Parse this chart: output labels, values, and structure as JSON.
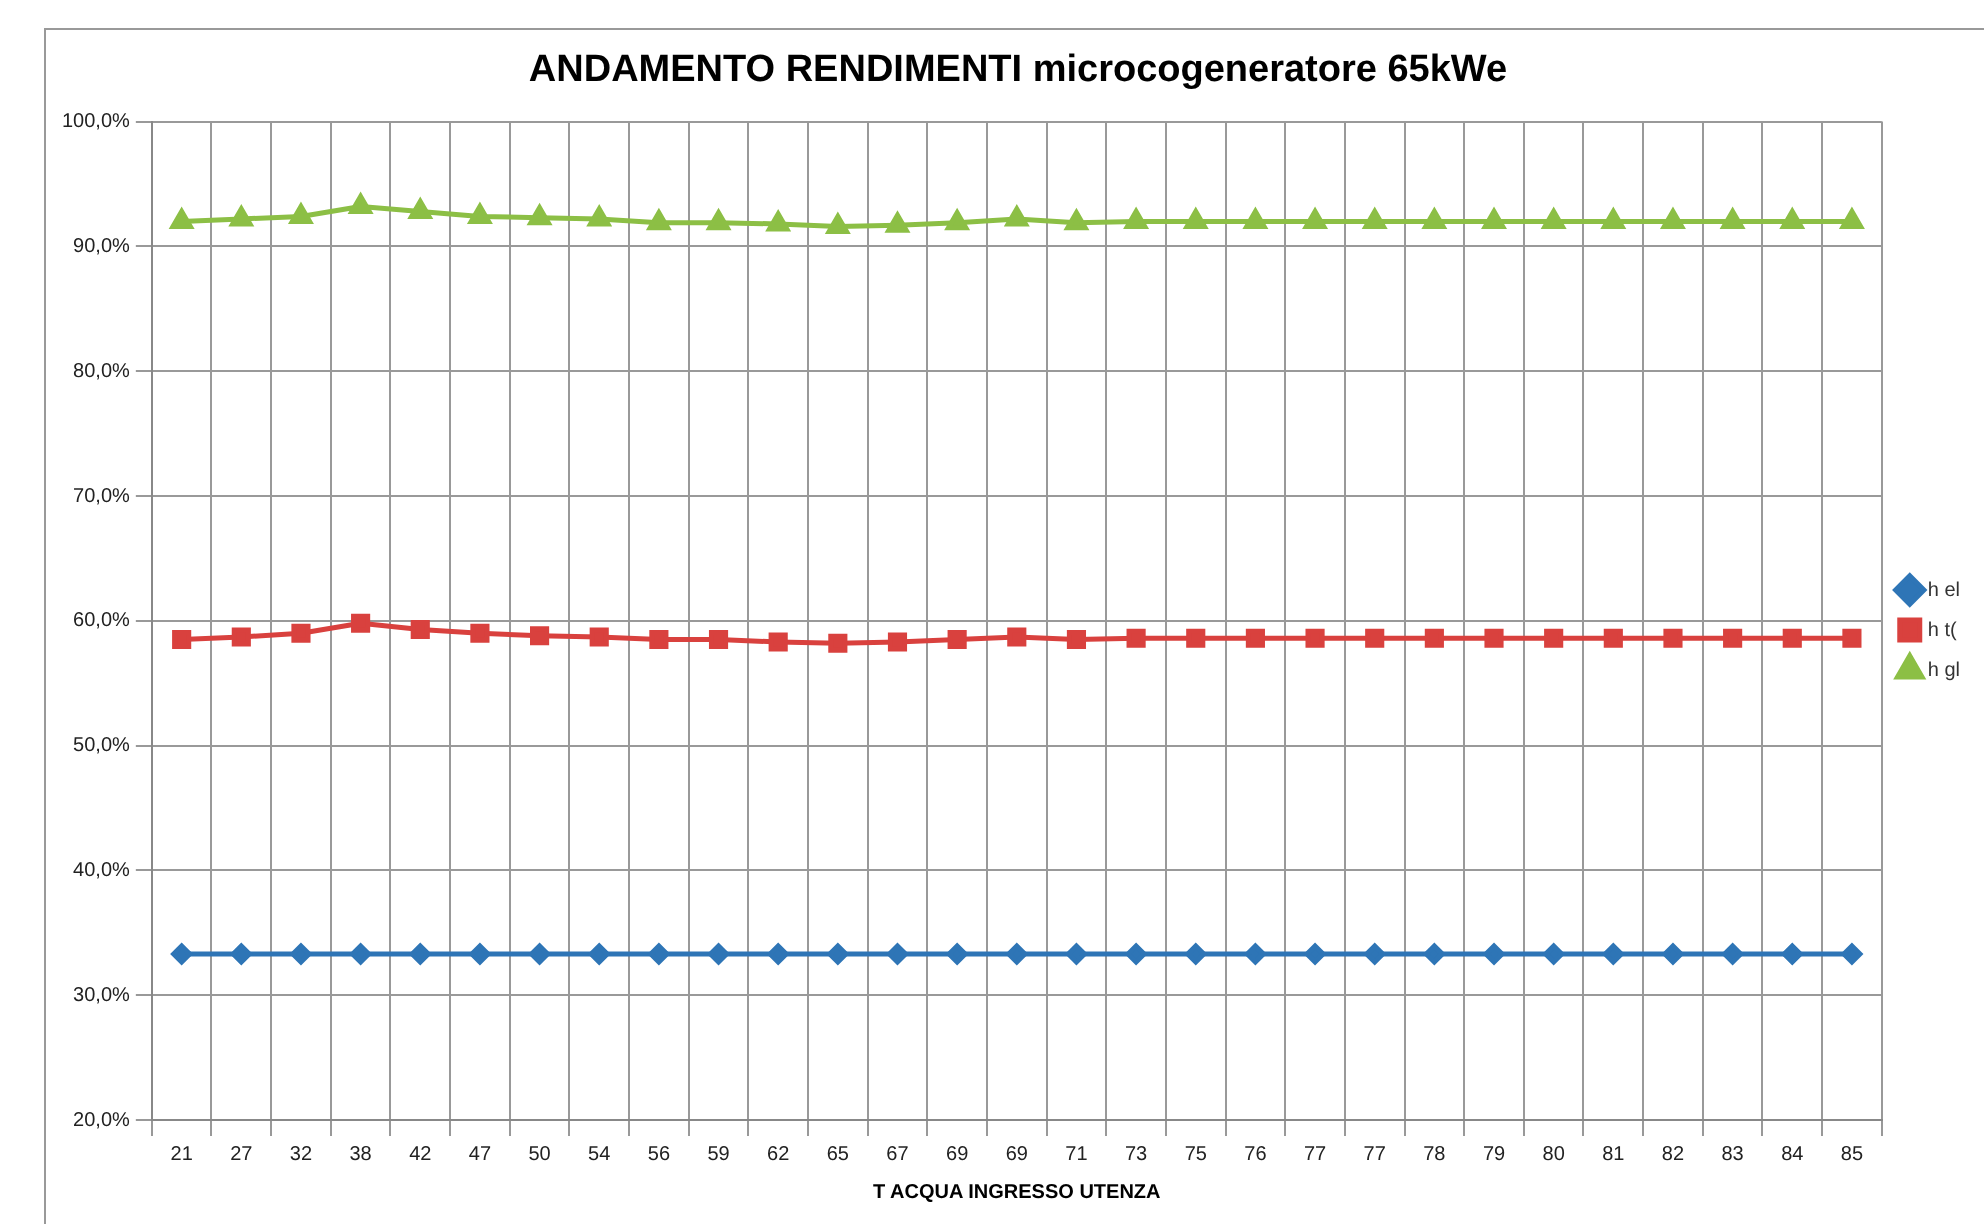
{
  "chart_data": {
    "type": "line",
    "title": "ANDAMENTO RENDIMENTI microcogeneratore 65kWe",
    "xlabel": "T ACQUA INGRESSO UTENZA",
    "categories": [
      "21",
      "27",
      "32",
      "38",
      "42",
      "47",
      "50",
      "54",
      "56",
      "59",
      "62",
      "65",
      "67",
      "69",
      "69",
      "71",
      "73",
      "75",
      "76",
      "77",
      "77",
      "78",
      "79",
      "80",
      "81",
      "82",
      "83",
      "84",
      "85"
    ],
    "series": [
      {
        "name": "h el",
        "color": "#2e75b6",
        "marker": "diamond",
        "values": [
          33.3,
          33.3,
          33.3,
          33.3,
          33.3,
          33.3,
          33.3,
          33.3,
          33.3,
          33.3,
          33.3,
          33.3,
          33.3,
          33.3,
          33.3,
          33.3,
          33.3,
          33.3,
          33.3,
          33.3,
          33.3,
          33.3,
          33.3,
          33.3,
          33.3,
          33.3,
          33.3,
          33.3,
          33.3
        ]
      },
      {
        "name": "h t(",
        "color": "#d9413e",
        "marker": "square",
        "values": [
          58.5,
          58.7,
          59.0,
          59.8,
          59.3,
          59.0,
          58.8,
          58.7,
          58.5,
          58.5,
          58.3,
          58.2,
          58.3,
          58.5,
          58.7,
          58.5,
          58.6,
          58.6,
          58.6,
          58.6,
          58.6,
          58.6,
          58.6,
          58.6,
          58.6,
          58.6,
          58.6,
          58.6,
          58.6
        ]
      },
      {
        "name": "h gl",
        "color": "#8cbf45",
        "marker": "triangle",
        "values": [
          92.0,
          92.2,
          92.4,
          93.2,
          92.8,
          92.4,
          92.3,
          92.2,
          91.9,
          91.9,
          91.8,
          91.6,
          91.7,
          91.9,
          92.2,
          91.9,
          92.0,
          92.0,
          92.0,
          92.0,
          92.0,
          92.0,
          92.0,
          92.0,
          92.0,
          92.0,
          92.0,
          92.0,
          92.0
        ]
      }
    ],
    "ylim": [
      20,
      100
    ],
    "yticks": [
      {
        "value": 20,
        "label": "20,0%"
      },
      {
        "value": 30,
        "label": "30,0%"
      },
      {
        "value": 40,
        "label": "40,0%"
      },
      {
        "value": 50,
        "label": "50,0%"
      },
      {
        "value": 60,
        "label": "60,0%"
      },
      {
        "value": 70,
        "label": "70,0%"
      },
      {
        "value": 80,
        "label": "80,0%"
      },
      {
        "value": 90,
        "label": "90,0%"
      },
      {
        "value": 100,
        "label": "100,0%"
      }
    ],
    "grid": true,
    "legend": "right",
    "line_style": "solid"
  }
}
